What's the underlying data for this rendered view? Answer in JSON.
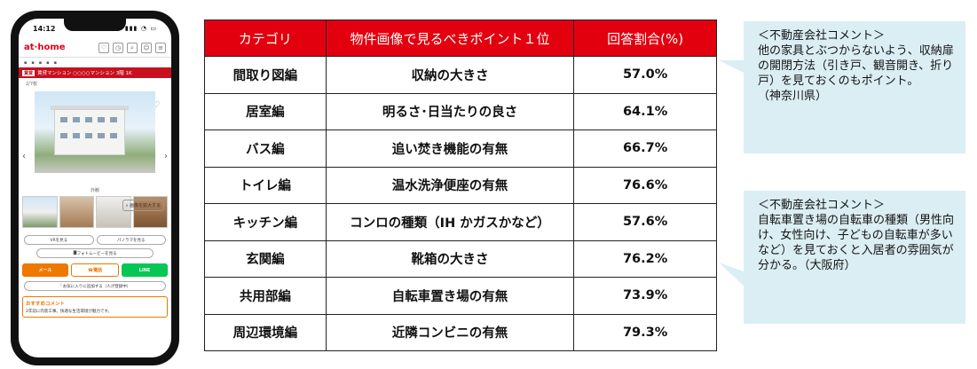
{
  "phone": {
    "time": "14:12",
    "logo": "at·home",
    "redbar_tag": "賃貸",
    "redbar_text": "賃貸マンション ○○○○マンション 3階 1K",
    "image_count": "2/7枚",
    "caption": "外観",
    "zoom_label": "画像を拡大する",
    "vr_button": "VRを見る",
    "panorama_button": "パノラマを見る",
    "movie_button": "フォトムービーを見る",
    "mail_button": "メール",
    "tel_button": "電話",
    "line_button": "LINE",
    "fav_add": "お気に入りに追加する（人が登録中）",
    "reco_title": "おすすめコメント",
    "reco_text": "2年前に内装工事。快適な生活環境が魅力です。"
  },
  "table": {
    "headers": [
      "カテゴリ",
      "物件画像で見るべきポイント１位",
      "回答割合(%)"
    ],
    "rows": [
      {
        "category": "間取り図編",
        "point": "収納の大きさ",
        "ratio": "57.0%"
      },
      {
        "category": "居室編",
        "point": "明るさ･日当たりの良さ",
        "ratio": "64.1%"
      },
      {
        "category": "バス編",
        "point": "追い焚き機能の有無",
        "ratio": "66.7%"
      },
      {
        "category": "トイレ編",
        "point": "温水洗浄便座の有無",
        "ratio": "76.6%"
      },
      {
        "category": "キッチン編",
        "point": "コンロの種類（IH かガスかなど）",
        "ratio": "57.6%"
      },
      {
        "category": "玄関編",
        "point": "靴箱の大きさ",
        "ratio": "76.2%"
      },
      {
        "category": "共用部編",
        "point": "自転車置き場の有無",
        "ratio": "73.9%"
      },
      {
        "category": "周辺環境編",
        "point": "近隣コンビニの有無",
        "ratio": "79.3%"
      }
    ]
  },
  "callouts": [
    {
      "text": "＜不動産会社コメント＞\n他の家具とぶつからないよう、収納扉の開閉方法（引き戸、観音開き、折り戸）を見ておくのもポイント。\n（神奈川県）"
    },
    {
      "text": "＜不動産会社コメント＞\n自転車置き場の自転車の種類（男性向け、女性向け、子どもの自転車が多いなど）を見ておくと入居者の雰囲気が分かる。（大阪府）"
    }
  ],
  "colors": {
    "header_red": "#e2000f",
    "callout_bg": "#dbeef4",
    "brand_red": "#e2001a"
  }
}
